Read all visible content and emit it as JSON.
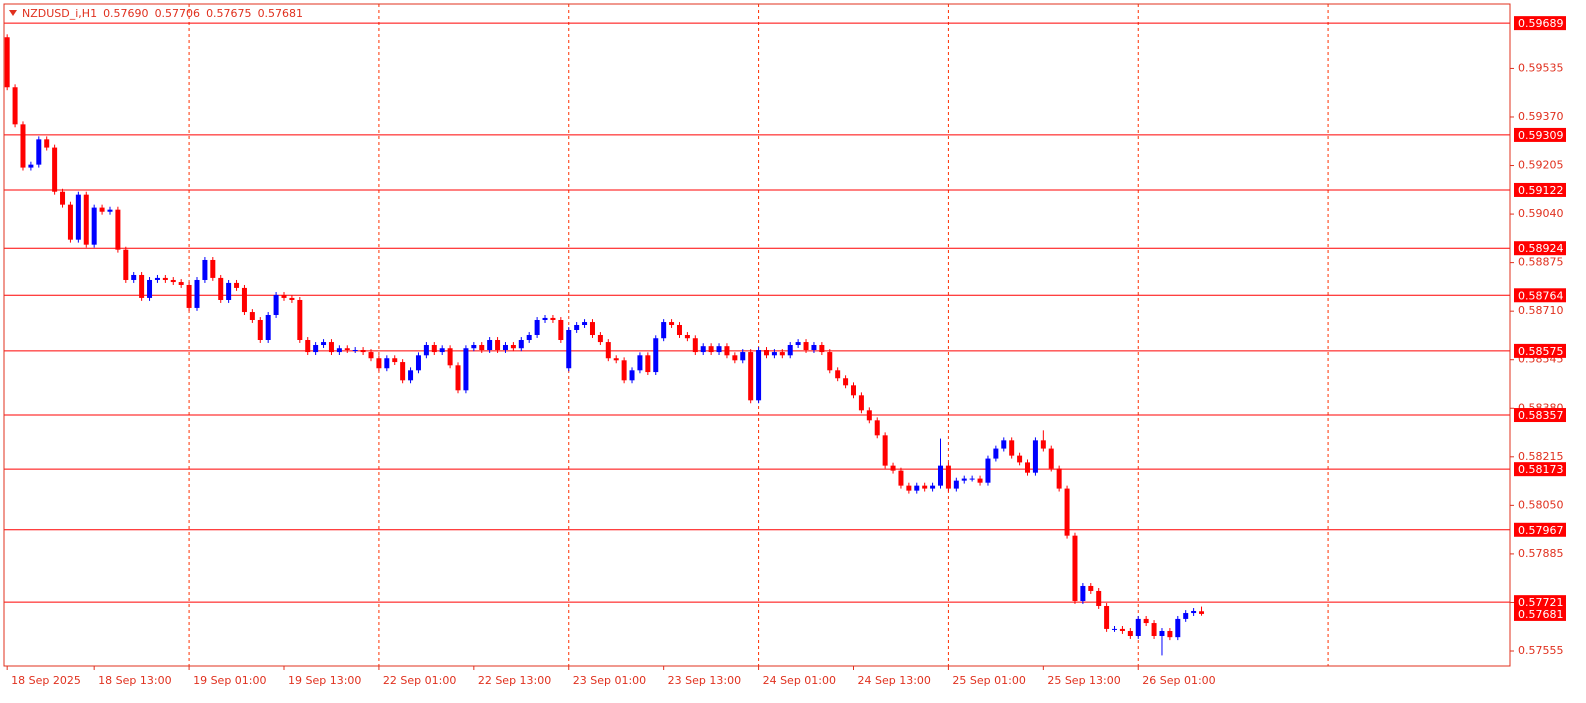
{
  "chart_data": {
    "type": "candlestick",
    "title": "NZDUSD_i,H1",
    "header_values": [
      "0.57690",
      "0.57706",
      "0.57675",
      "0.57681"
    ],
    "up_color": "#0000ff",
    "down_color": "#ff0000",
    "grid_color": "#ff3000",
    "level_color": "#ff0000",
    "open": [
      0.59641,
      0.59471,
      0.59345,
      0.59198,
      0.59208,
      0.59294,
      0.59266,
      0.59116,
      0.59072,
      0.58953,
      0.59106,
      0.58936,
      0.59062,
      0.59048,
      0.59055,
      0.58919,
      0.58816,
      0.58833,
      0.58755,
      0.58816,
      0.58823,
      0.58816,
      0.58809,
      0.58799,
      0.58721,
      0.58816,
      0.58884,
      0.58823,
      0.58748,
      0.58806,
      0.58789,
      0.58707,
      0.5868,
      0.58612,
      0.58697,
      0.58765,
      0.58755,
      0.58748,
      0.58612,
      0.58571,
      0.58595,
      0.58605,
      0.58571,
      0.58584,
      0.58578,
      0.58578,
      0.58571,
      0.5855,
      0.58516,
      0.5855,
      0.58537,
      0.58475,
      0.58509,
      0.5856,
      0.58595,
      0.58571,
      0.58584,
      0.58526,
      0.58441,
      0.58584,
      0.58595,
      0.58578,
      0.58612,
      0.58578,
      0.58595,
      0.58584,
      0.58612,
      0.58629,
      0.5868,
      0.58687,
      0.5868,
      0.58516,
      0.58646,
      0.58663,
      0.58673,
      0.58629,
      0.58605,
      0.5855,
      0.58543,
      0.58475,
      0.58509,
      0.5856,
      0.58503,
      0.58618,
      0.58673,
      0.58663,
      0.58629,
      0.58618,
      0.58571,
      0.58591,
      0.58571,
      0.58591,
      0.5856,
      0.58543,
      0.58571,
      0.58407,
      0.58578,
      0.5856,
      0.58571,
      0.5856,
      0.58595,
      0.58605,
      0.58578,
      0.58595,
      0.58571,
      0.58509,
      0.58482,
      0.58458,
      0.58424,
      0.58373,
      0.58339,
      0.58288,
      0.58185,
      0.58168,
      0.58117,
      0.581,
      0.58117,
      0.58107,
      0.58117,
      0.58185,
      0.58107,
      0.58134,
      0.58141,
      0.58141,
      0.58127,
      0.58209,
      0.58243,
      0.58271,
      0.58219,
      0.58196,
      0.58161,
      0.58271,
      0.58243,
      0.58175,
      0.58107,
      0.57947,
      0.57725,
      0.57776,
      0.57759,
      0.57708,
      0.5763,
      0.5763,
      0.57623,
      0.57606,
      0.57664,
      0.5765,
      0.57606,
      0.57623,
      0.57602,
      0.57664,
      0.57684,
      0.5769
    ],
    "high": [
      0.59651,
      0.59481,
      0.59355,
      0.59218,
      0.59304,
      0.59304,
      0.59276,
      0.59126,
      0.59082,
      0.59116,
      0.59116,
      0.59072,
      0.59072,
      0.59065,
      0.59065,
      0.58929,
      0.58843,
      0.58843,
      0.58826,
      0.58833,
      0.58833,
      0.58826,
      0.58819,
      0.58809,
      0.58826,
      0.58894,
      0.58894,
      0.58833,
      0.58816,
      0.58816,
      0.58799,
      0.58717,
      0.5869,
      0.58707,
      0.58775,
      0.58775,
      0.58765,
      0.58758,
      0.58622,
      0.58605,
      0.58615,
      0.58615,
      0.58594,
      0.58594,
      0.58588,
      0.58588,
      0.58581,
      0.5856,
      0.5856,
      0.5856,
      0.58547,
      0.58519,
      0.5857,
      0.58605,
      0.58605,
      0.58594,
      0.58594,
      0.58536,
      0.58594,
      0.58605,
      0.58605,
      0.58622,
      0.58622,
      0.58605,
      0.58605,
      0.58622,
      0.58639,
      0.5869,
      0.58697,
      0.58697,
      0.5869,
      0.58656,
      0.58673,
      0.58683,
      0.58683,
      0.58639,
      0.58615,
      0.5856,
      0.58553,
      0.58519,
      0.5857,
      0.5857,
      0.58628,
      0.58683,
      0.58683,
      0.58673,
      0.58639,
      0.58628,
      0.58601,
      0.58601,
      0.58601,
      0.58601,
      0.5857,
      0.58581,
      0.58581,
      0.58588,
      0.58588,
      0.58581,
      0.58581,
      0.58605,
      0.58615,
      0.58615,
      0.58605,
      0.58605,
      0.58581,
      0.58519,
      0.58492,
      0.58468,
      0.58434,
      0.58383,
      0.58349,
      0.58298,
      0.58195,
      0.58178,
      0.58127,
      0.58127,
      0.58127,
      0.58127,
      0.58277,
      0.58195,
      0.58144,
      0.58151,
      0.58151,
      0.58151,
      0.58219,
      0.58253,
      0.58281,
      0.58281,
      0.58229,
      0.58206,
      0.58281,
      0.58305,
      0.58253,
      0.58185,
      0.58117,
      0.57957,
      0.57786,
      0.57786,
      0.57769,
      0.57718,
      0.5764,
      0.5764,
      0.57633,
      0.57674,
      0.57674,
      0.5766,
      0.57633,
      0.57633,
      0.57674,
      0.57694,
      0.57701,
      0.57706
    ],
    "low": [
      0.59461,
      0.59335,
      0.59188,
      0.59188,
      0.59198,
      0.59256,
      0.59106,
      0.59062,
      0.58943,
      0.58943,
      0.58926,
      0.58926,
      0.59038,
      0.59038,
      0.58909,
      0.58806,
      0.58806,
      0.58745,
      0.58745,
      0.58806,
      0.58806,
      0.58799,
      0.58789,
      0.58711,
      0.58711,
      0.58806,
      0.58813,
      0.58738,
      0.58738,
      0.58779,
      0.58697,
      0.5867,
      0.58602,
      0.58602,
      0.58687,
      0.58745,
      0.58738,
      0.58602,
      0.58561,
      0.58561,
      0.58585,
      0.58561,
      0.58561,
      0.58568,
      0.58568,
      0.58561,
      0.5854,
      0.58506,
      0.58506,
      0.58527,
      0.58465,
      0.58465,
      0.58499,
      0.5855,
      0.58561,
      0.58561,
      0.58516,
      0.58431,
      0.58431,
      0.58574,
      0.58568,
      0.58568,
      0.58568,
      0.58568,
      0.58574,
      0.58574,
      0.58602,
      0.58619,
      0.5867,
      0.5867,
      0.58602,
      0.58506,
      0.58636,
      0.58653,
      0.58619,
      0.58595,
      0.5854,
      0.58533,
      0.58465,
      0.58465,
      0.58499,
      0.58493,
      0.58493,
      0.58608,
      0.58653,
      0.58619,
      0.58608,
      0.58561,
      0.58561,
      0.58561,
      0.58561,
      0.5855,
      0.58533,
      0.58533,
      0.58397,
      0.58397,
      0.5855,
      0.5855,
      0.5855,
      0.5855,
      0.58585,
      0.58568,
      0.58568,
      0.58561,
      0.58499,
      0.58472,
      0.58448,
      0.58414,
      0.58363,
      0.58329,
      0.58278,
      0.58175,
      0.58158,
      0.58107,
      0.5809,
      0.5809,
      0.58097,
      0.58097,
      0.58107,
      0.58097,
      0.58097,
      0.58124,
      0.58131,
      0.58117,
      0.58117,
      0.58199,
      0.58233,
      0.58209,
      0.58186,
      0.58151,
      0.58151,
      0.58233,
      0.58165,
      0.58097,
      0.57937,
      0.57715,
      0.57715,
      0.57749,
      0.57698,
      0.5762,
      0.5762,
      0.57613,
      0.57596,
      0.57596,
      0.5764,
      0.57596,
      0.5754,
      0.57592,
      0.57592,
      0.57654,
      0.57674,
      0.57675
    ],
    "close": [
      0.59471,
      0.59345,
      0.59198,
      0.59208,
      0.59294,
      0.59266,
      0.59116,
      0.59072,
      0.58953,
      0.59106,
      0.58936,
      0.59062,
      0.59048,
      0.59055,
      0.58919,
      0.58816,
      0.58833,
      0.58755,
      0.58816,
      0.58823,
      0.58816,
      0.58809,
      0.58799,
      0.58721,
      0.58816,
      0.58884,
      0.58823,
      0.58748,
      0.58806,
      0.58789,
      0.58707,
      0.5868,
      0.58612,
      0.58697,
      0.58765,
      0.58755,
      0.58748,
      0.58612,
      0.58571,
      0.58595,
      0.58605,
      0.58571,
      0.58584,
      0.58578,
      0.58578,
      0.58571,
      0.5855,
      0.58516,
      0.5855,
      0.58537,
      0.58475,
      0.58509,
      0.5856,
      0.58595,
      0.58571,
      0.58584,
      0.58526,
      0.58441,
      0.58584,
      0.58595,
      0.58578,
      0.58612,
      0.58578,
      0.58595,
      0.58584,
      0.58612,
      0.58629,
      0.5868,
      0.58687,
      0.5868,
      0.58612,
      0.58646,
      0.58663,
      0.58673,
      0.58629,
      0.58605,
      0.5855,
      0.58543,
      0.58475,
      0.58509,
      0.5856,
      0.58503,
      0.58618,
      0.58673,
      0.58663,
      0.58629,
      0.58618,
      0.58571,
      0.58591,
      0.58571,
      0.58591,
      0.5856,
      0.58543,
      0.58571,
      0.58407,
      0.58578,
      0.5856,
      0.58571,
      0.5856,
      0.58595,
      0.58605,
      0.58578,
      0.58595,
      0.58571,
      0.58509,
      0.58482,
      0.58458,
      0.58424,
      0.58373,
      0.58339,
      0.58288,
      0.58185,
      0.58168,
      0.58117,
      0.581,
      0.58117,
      0.58107,
      0.58117,
      0.58185,
      0.58107,
      0.58134,
      0.58141,
      0.58141,
      0.58127,
      0.58209,
      0.58243,
      0.58271,
      0.58219,
      0.58196,
      0.58161,
      0.58271,
      0.58243,
      0.58175,
      0.58107,
      0.57947,
      0.57725,
      0.57776,
      0.57759,
      0.57708,
      0.5763,
      0.5763,
      0.57623,
      0.57606,
      0.57664,
      0.5765,
      0.57606,
      0.57623,
      0.57602,
      0.57664,
      0.57684,
      0.57691,
      0.57681
    ],
    "xlim": [
      -0.4,
      190
    ],
    "ylim": [
      0.57504,
      0.59754
    ],
    "xticks": [
      {
        "value": 0,
        "label": "18 Sep 2025"
      },
      {
        "value": 11,
        "label": "18 Sep 13:00"
      },
      {
        "value": 23,
        "label": "19 Sep 01:00"
      },
      {
        "value": 35,
        "label": "19 Sep 13:00"
      },
      {
        "value": 47,
        "label": "22 Sep 01:00"
      },
      {
        "value": 59,
        "label": "22 Sep 13:00"
      },
      {
        "value": 71,
        "label": "23 Sep 01:00"
      },
      {
        "value": 83,
        "label": "23 Sep 13:00"
      },
      {
        "value": 95,
        "label": "24 Sep 01:00"
      },
      {
        "value": 107,
        "label": "24 Sep 13:00"
      },
      {
        "value": 119,
        "label": "25 Sep 01:00"
      },
      {
        "value": 131,
        "label": "25 Sep 13:00"
      },
      {
        "value": 143,
        "label": "26 Sep 01:00"
      }
    ],
    "xgrid": [
      23,
      47,
      71,
      95,
      119,
      143,
      167
    ],
    "yticks": [
      {
        "value": 0.59535,
        "label": "0.59535"
      },
      {
        "value": 0.5937,
        "label": "0.59370"
      },
      {
        "value": 0.59205,
        "label": "0.59205"
      },
      {
        "value": 0.5904,
        "label": "0.59040"
      },
      {
        "value": 0.58875,
        "label": "0.58875"
      },
      {
        "value": 0.5871,
        "label": "0.58710"
      },
      {
        "value": 0.58545,
        "label": "0.58545"
      },
      {
        "value": 0.5838,
        "label": "0.58380"
      },
      {
        "value": 0.58215,
        "label": "0.58215"
      },
      {
        "value": 0.5805,
        "label": "0.58050"
      },
      {
        "value": 0.57885,
        "label": "0.57885"
      },
      {
        "value": 0.5772,
        "label": "0.57720"
      },
      {
        "value": 0.57555,
        "label": "0.57555"
      }
    ],
    "levels": [
      {
        "value": 0.59689,
        "label": "0.59689"
      },
      {
        "value": 0.59309,
        "label": "0.59309"
      },
      {
        "value": 0.59122,
        "label": "0.59122"
      },
      {
        "value": 0.58924,
        "label": "0.58924"
      },
      {
        "value": 0.58764,
        "label": "0.58764"
      },
      {
        "value": 0.58575,
        "label": "0.58575"
      },
      {
        "value": 0.58357,
        "label": "0.58357"
      },
      {
        "value": 0.58173,
        "label": "0.58173"
      },
      {
        "value": 0.57967,
        "label": "0.57967"
      },
      {
        "value": 0.57721,
        "label": "0.57721"
      }
    ],
    "current_price": {
      "value": 0.57681,
      "label": "0.57681"
    }
  }
}
